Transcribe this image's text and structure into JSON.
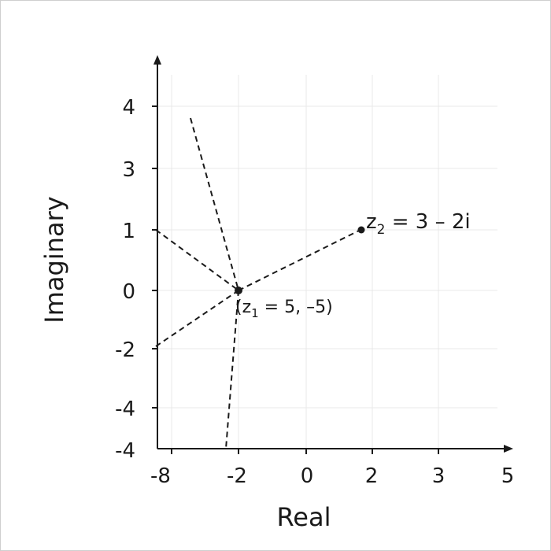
{
  "diagram": {
    "x_axis_label": "Real",
    "y_axis_label": "Imaginary",
    "x_ticks": [
      "-8",
      "-2",
      "0",
      "2",
      "3",
      "5"
    ],
    "y_ticks": [
      "4",
      "3",
      "1",
      "0",
      "-2",
      "-4",
      "-4"
    ],
    "z1_label": {
      "lead": "(z",
      "sub": "1",
      "tail": " = 5, –5)"
    },
    "z2_label": {
      "lead": "z",
      "sub": "2",
      "tail": " = 3 – 2i"
    },
    "grid": true,
    "colors": {
      "axis": "#1a1a1a",
      "grid": "#e6e6e6",
      "dash": "#1a1a1a"
    }
  }
}
